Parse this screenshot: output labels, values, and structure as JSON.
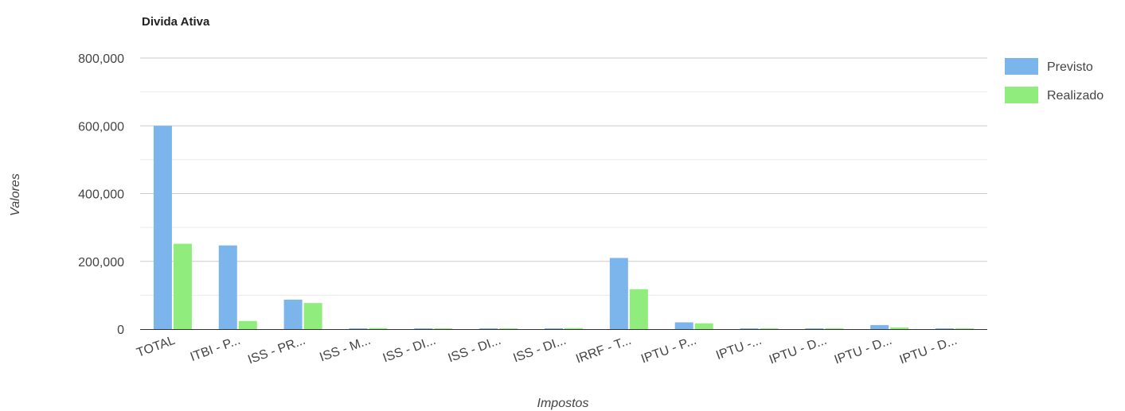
{
  "chart_data": {
    "type": "bar",
    "title": "Divida Ativa",
    "xlabel": "Impostos",
    "ylabel": "Valores",
    "ylim": [
      0,
      800000
    ],
    "y_ticks": [
      0,
      200000,
      400000,
      600000,
      800000
    ],
    "y_tick_labels": [
      "0",
      "200,000",
      "400,000",
      "600,000",
      "800,000"
    ],
    "grid": true,
    "legend_position": "right",
    "categories": [
      "TOTAL",
      "ITBI - P...",
      "ISS - PR...",
      "ISS - M...",
      "ISS - DI...",
      "ISS - DI...",
      "ISS - DI...",
      "IRRF - T...",
      "IPTU - P...",
      "IPTU -...",
      "IPTU - D...",
      "IPTU - D...",
      "IPTU - D..."
    ],
    "series": [
      {
        "name": "Previsto",
        "color": "#7cb5ec",
        "values": [
          600000,
          247000,
          87000,
          2000,
          1500,
          1500,
          1500,
          210000,
          20000,
          1000,
          2000,
          12000,
          1500
        ]
      },
      {
        "name": "Realizado",
        "color": "#90ed7d",
        "values": [
          252000,
          24000,
          77000,
          3000,
          1000,
          1000,
          3000,
          118000,
          17000,
          1000,
          2500,
          5000,
          1500
        ]
      }
    ]
  }
}
